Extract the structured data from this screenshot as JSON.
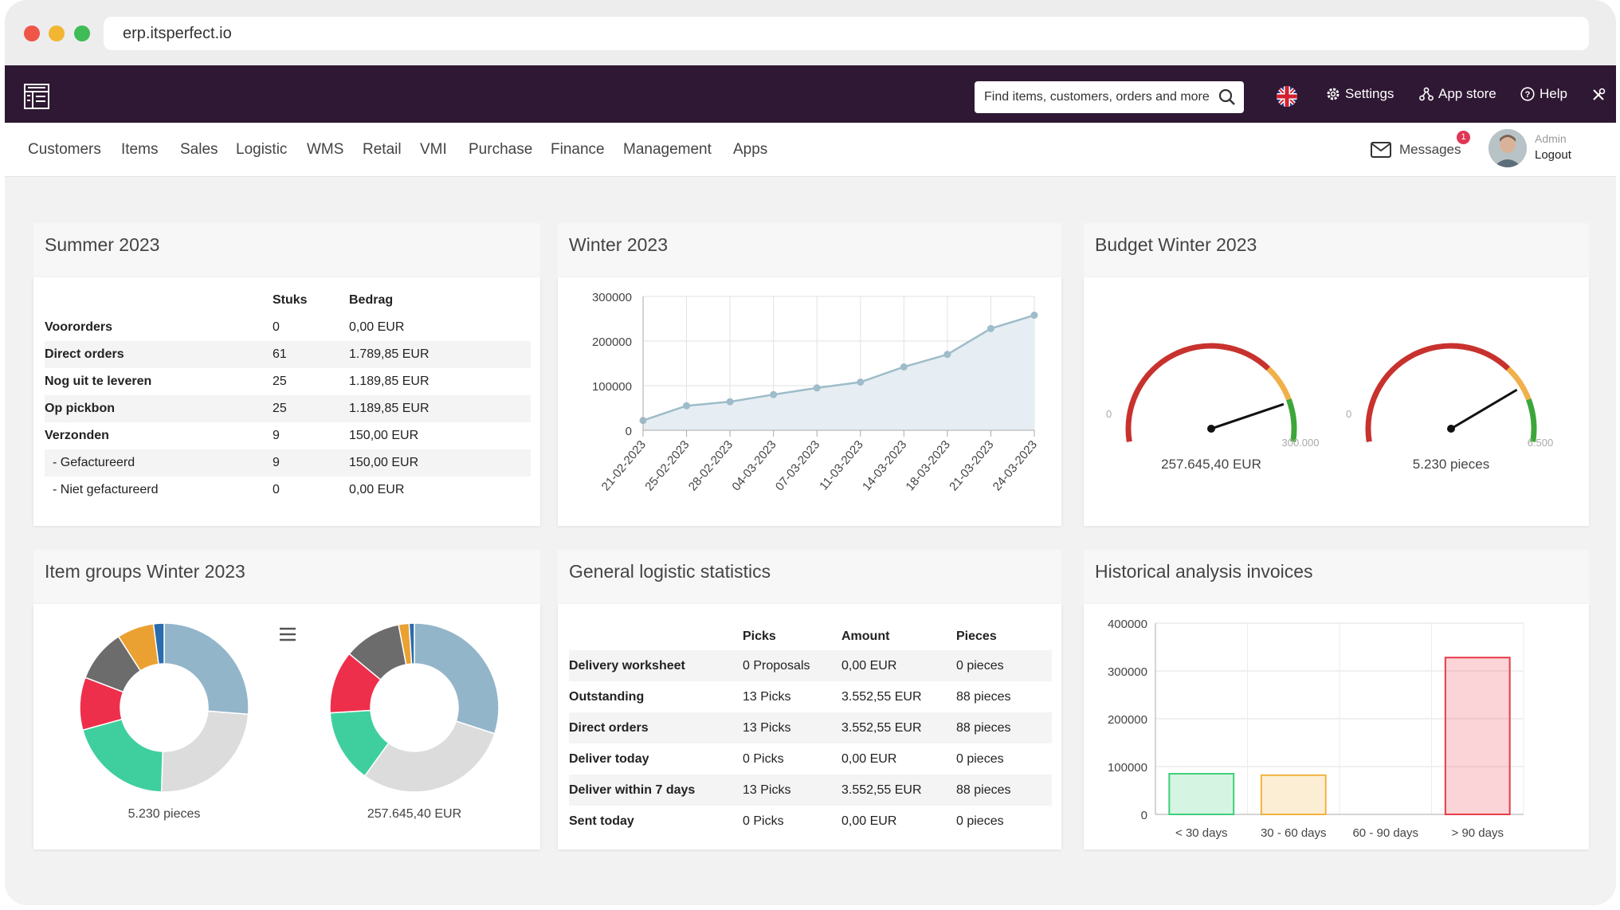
{
  "browser": {
    "url": "erp.itsperfect.io"
  },
  "topbar": {
    "search_placeholder": "Find items, customers, orders and more",
    "settings": "Settings",
    "app_store": "App store",
    "help": "Help"
  },
  "menu": {
    "items": [
      "Customers",
      "Items",
      "Sales",
      "Logistic",
      "WMS",
      "Retail",
      "VMI",
      "Purchase",
      "Finance",
      "Management",
      "Apps"
    ],
    "messages_label": "Messages",
    "messages_count": "1",
    "user_role": "Admin",
    "logout": "Logout"
  },
  "summer": {
    "title": "Summer 2023",
    "headers": [
      "Stuks",
      "Bedrag"
    ],
    "rows": [
      {
        "label": "Voororders",
        "stuks": "0",
        "bedrag": "0,00 EUR",
        "bold": true
      },
      {
        "label": "Direct orders",
        "stuks": "61",
        "bedrag": "1.789,85 EUR",
        "bold": true
      },
      {
        "label": "Nog uit te leveren",
        "stuks": "25",
        "bedrag": "1.189,85 EUR",
        "bold": true
      },
      {
        "label": "Op pickbon",
        "stuks": "25",
        "bedrag": "1.189,85 EUR",
        "bold": true
      },
      {
        "label": "Verzonden",
        "stuks": "9",
        "bedrag": "150,00 EUR",
        "bold": true
      },
      {
        "label": "- Gefactureerd",
        "stuks": "9",
        "bedrag": "150,00 EUR",
        "bold": false
      },
      {
        "label": "- Niet gefactureerd",
        "stuks": "0",
        "bedrag": "0,00 EUR",
        "bold": false
      }
    ]
  },
  "winter": {
    "title": "Winter 2023"
  },
  "budget": {
    "title": "Budget Winter 2023",
    "gauges": [
      {
        "min_label": "0",
        "max_label": "300.000",
        "value_label": "257.645,40 EUR",
        "fraction": 0.86
      },
      {
        "min_label": "0",
        "max_label": "6.500",
        "value_label": "5.230 pieces",
        "fraction": 0.8
      }
    ]
  },
  "itemgroups": {
    "title": "Item groups Winter 2023",
    "donuts": [
      {
        "label": "5.230 pieces",
        "values": [
          26,
          24,
          20,
          10,
          10,
          7,
          2
        ],
        "colors": [
          "#93b5ca",
          "#dcdcdc",
          "#3fcf9f",
          "#ee2f4b",
          "#6c6c6c",
          "#eba131",
          "#2a6cad"
        ]
      },
      {
        "label": "257.645,40 EUR",
        "values": [
          30,
          30,
          14,
          12,
          11,
          2,
          1
        ],
        "colors": [
          "#93b5ca",
          "#dcdcdc",
          "#3fcf9f",
          "#ee2f4b",
          "#6c6c6c",
          "#eba131",
          "#2a6cad"
        ]
      }
    ]
  },
  "logistic": {
    "title": "General logistic statistics",
    "headers": [
      "Picks",
      "Amount",
      "Pieces"
    ],
    "rows": [
      {
        "label": "Delivery worksheet",
        "picks": "0 Proposals",
        "amount": "0,00 EUR",
        "pieces": "0 pieces"
      },
      {
        "label": "Outstanding",
        "picks": "13 Picks",
        "amount": "3.552,55 EUR",
        "pieces": "88 pieces"
      },
      {
        "label": "Direct orders",
        "picks": "13 Picks",
        "amount": "3.552,55 EUR",
        "pieces": "88 pieces"
      },
      {
        "label": "Deliver today",
        "picks": "0 Picks",
        "amount": "0,00 EUR",
        "pieces": "0 pieces"
      },
      {
        "label": "Deliver within 7 days",
        "picks": "13 Picks",
        "amount": "3.552,55 EUR",
        "pieces": "88 pieces"
      },
      {
        "label": "Sent today",
        "picks": "0 Picks",
        "amount": "0,00 EUR",
        "pieces": "0 pieces"
      }
    ]
  },
  "historical": {
    "title": "Historical analysis invoices"
  },
  "chart_data": [
    {
      "type": "area",
      "title": "Winter 2023",
      "x": [
        "21-02-2023",
        "25-02-2023",
        "28-02-2023",
        "04-03-2023",
        "07-03-2023",
        "11-03-2023",
        "14-03-2023",
        "18-03-2023",
        "21-03-2023",
        "24-03-2023"
      ],
      "values": [
        22000,
        55000,
        64000,
        80000,
        95000,
        108000,
        142000,
        170000,
        228000,
        258000
      ],
      "y_ticks": [
        0,
        100000,
        200000,
        300000
      ],
      "ylim": [
        0,
        300000
      ],
      "grid": true,
      "color": "#9ebcc9"
    },
    {
      "type": "bar",
      "title": "Historical analysis invoices",
      "categories": [
        "< 30 days",
        "30 - 60 days",
        "60 - 90 days",
        "> 90 days"
      ],
      "values": [
        85000,
        82000,
        0,
        328000
      ],
      "colors": [
        "#3fcf7a",
        "#f1b23f",
        "#cccccc",
        "#e83a4a"
      ],
      "y_ticks": [
        0,
        100000,
        200000,
        300000,
        400000
      ],
      "ylim": [
        0,
        400000
      ],
      "grid": true
    }
  ]
}
